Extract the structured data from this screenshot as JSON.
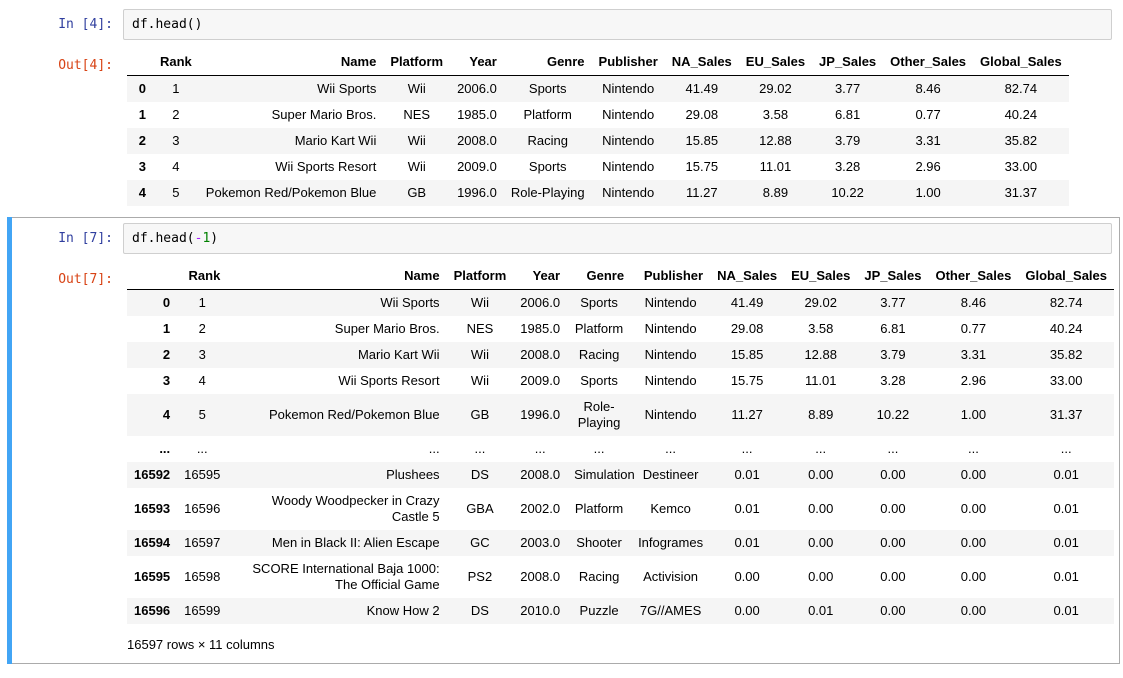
{
  "colors": {
    "in_prompt": "#303F9F",
    "out_prompt": "#D84315",
    "selected_cell_border": "#ababab",
    "selected_cell_bar": "#42A5F5",
    "input_bg": "#f7f7f7",
    "input_border": "#cfcfcf",
    "row_stripe": "#f5f5f5",
    "code_operator": "#AA22FF",
    "code_number": "#008000"
  },
  "cells": [
    {
      "in_prompt": "In [4]:",
      "out_prompt": "Out[4]:",
      "code": [
        {
          "text": "df.head()",
          "cls": "plain"
        }
      ],
      "table": {
        "headers": [
          "",
          "Rank",
          "Name",
          "Platform",
          "Year",
          "Genre",
          "Publisher",
          "NA_Sales",
          "EU_Sales",
          "JP_Sales",
          "Other_Sales",
          "Global_Sales"
        ],
        "rows": [
          [
            "0",
            "1",
            "Wii Sports",
            "Wii",
            "2006.0",
            "Sports",
            "Nintendo",
            "41.49",
            "29.02",
            "3.77",
            "8.46",
            "82.74"
          ],
          [
            "1",
            "2",
            "Super Mario Bros.",
            "NES",
            "1985.0",
            "Platform",
            "Nintendo",
            "29.08",
            "3.58",
            "6.81",
            "0.77",
            "40.24"
          ],
          [
            "2",
            "3",
            "Mario Kart Wii",
            "Wii",
            "2008.0",
            "Racing",
            "Nintendo",
            "15.85",
            "12.88",
            "3.79",
            "3.31",
            "35.82"
          ],
          [
            "3",
            "4",
            "Wii Sports Resort",
            "Wii",
            "2009.0",
            "Sports",
            "Nintendo",
            "15.75",
            "11.01",
            "3.28",
            "2.96",
            "33.00"
          ],
          [
            "4",
            "5",
            "Pokemon Red/Pokemon Blue",
            "GB",
            "1996.0",
            "Role-Playing",
            "Nintendo",
            "11.27",
            "8.89",
            "10.22",
            "1.00",
            "31.37"
          ]
        ]
      }
    },
    {
      "in_prompt": "In [7]:",
      "out_prompt": "Out[7]:",
      "code": [
        {
          "text": "df.head(",
          "cls": "plain"
        },
        {
          "text": "-",
          "cls": "op"
        },
        {
          "text": "1",
          "cls": "num"
        },
        {
          "text": ")",
          "cls": "plain"
        }
      ],
      "table": {
        "headers": [
          "",
          "Rank",
          "Name",
          "Platform",
          "Year",
          "Genre",
          "Publisher",
          "NA_Sales",
          "EU_Sales",
          "JP_Sales",
          "Other_Sales",
          "Global_Sales"
        ],
        "rows": [
          [
            "0",
            "1",
            "Wii Sports",
            "Wii",
            "2006.0",
            "Sports",
            "Nintendo",
            "41.49",
            "29.02",
            "3.77",
            "8.46",
            "82.74"
          ],
          [
            "1",
            "2",
            "Super Mario Bros.",
            "NES",
            "1985.0",
            "Platform",
            "Nintendo",
            "29.08",
            "3.58",
            "6.81",
            "0.77",
            "40.24"
          ],
          [
            "2",
            "3",
            "Mario Kart Wii",
            "Wii",
            "2008.0",
            "Racing",
            "Nintendo",
            "15.85",
            "12.88",
            "3.79",
            "3.31",
            "35.82"
          ],
          [
            "3",
            "4",
            "Wii Sports Resort",
            "Wii",
            "2009.0",
            "Sports",
            "Nintendo",
            "15.75",
            "11.01",
            "3.28",
            "2.96",
            "33.00"
          ],
          [
            "4",
            "5",
            "Pokemon Red/Pokemon Blue",
            "GB",
            "1996.0",
            "Role-Playing",
            "Nintendo",
            "11.27",
            "8.89",
            "10.22",
            "1.00",
            "31.37"
          ],
          [
            "...",
            "...",
            "...",
            "...",
            "...",
            "...",
            "...",
            "...",
            "...",
            "...",
            "...",
            "..."
          ],
          [
            "16592",
            "16595",
            "Plushees",
            "DS",
            "2008.0",
            "Simulation",
            "Destineer",
            "0.01",
            "0.00",
            "0.00",
            "0.00",
            "0.01"
          ],
          [
            "16593",
            "16596",
            "Woody Woodpecker in Crazy Castle 5",
            "GBA",
            "2002.0",
            "Platform",
            "Kemco",
            "0.01",
            "0.00",
            "0.00",
            "0.00",
            "0.01"
          ],
          [
            "16594",
            "16597",
            "Men in Black II: Alien Escape",
            "GC",
            "2003.0",
            "Shooter",
            "Infogrames",
            "0.01",
            "0.00",
            "0.00",
            "0.00",
            "0.01"
          ],
          [
            "16595",
            "16598",
            "SCORE International Baja 1000: The Official Game",
            "PS2",
            "2008.0",
            "Racing",
            "Activision",
            "0.00",
            "0.00",
            "0.00",
            "0.00",
            "0.01"
          ],
          [
            "16596",
            "16599",
            "Know How 2",
            "DS",
            "2010.0",
            "Puzzle",
            "7G//AMES",
            "0.00",
            "0.01",
            "0.00",
            "0.00",
            "0.01"
          ]
        ]
      },
      "footer": "16597 rows × 11 columns"
    }
  ]
}
